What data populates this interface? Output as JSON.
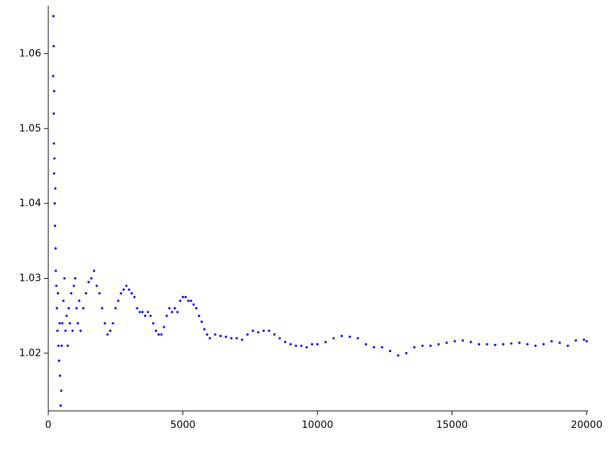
{
  "chart_data": {
    "type": "scatter",
    "color": "#0000ff",
    "xlim": [
      0,
      20050
    ],
    "ylim": [
      1.0123,
      1.0664
    ],
    "xticks": [
      0,
      5000,
      10000,
      15000,
      20000
    ],
    "yticks": [
      1.02,
      1.03,
      1.04,
      1.05,
      1.06
    ],
    "x": [
      180,
      190,
      200,
      205,
      210,
      215,
      220,
      230,
      240,
      250,
      260,
      270,
      280,
      300,
      320,
      340,
      360,
      380,
      400,
      420,
      440,
      460,
      480,
      500,
      520,
      560,
      600,
      640,
      680,
      720,
      760,
      800,
      850,
      900,
      950,
      1000,
      1050,
      1100,
      1150,
      1200,
      1300,
      1400,
      1500,
      1600,
      1700,
      1800,
      1900,
      2000,
      2100,
      2200,
      2300,
      2400,
      2500,
      2600,
      2700,
      2800,
      2900,
      3000,
      3100,
      3200,
      3300,
      3400,
      3500,
      3600,
      3700,
      3800,
      3900,
      4000,
      4100,
      4200,
      4300,
      4400,
      4500,
      4600,
      4700,
      4800,
      4900,
      5000,
      5100,
      5200,
      5300,
      5400,
      5500,
      5600,
      5700,
      5800,
      5900,
      6000,
      6200,
      6400,
      6600,
      6800,
      7000,
      7200,
      7400,
      7600,
      7800,
      8000,
      8200,
      8400,
      8600,
      8800,
      9000,
      9200,
      9400,
      9600,
      9800,
      10000,
      10300,
      10600,
      10900,
      11200,
      11500,
      11800,
      12100,
      12400,
      12700,
      13000,
      13300,
      13600,
      13900,
      14200,
      14500,
      14800,
      15100,
      15400,
      15700,
      16000,
      16300,
      16600,
      16900,
      17200,
      17500,
      17800,
      18100,
      18400,
      18700,
      19000,
      19300,
      19600,
      19900,
      20000
    ],
    "values": [
      1.057,
      1.065,
      1.061,
      1.052,
      1.048,
      1.044,
      1.055,
      1.046,
      1.04,
      1.037,
      1.042,
      1.034,
      1.031,
      1.029,
      1.026,
      1.023,
      1.028,
      1.021,
      1.019,
      1.024,
      1.017,
      1.013,
      1.015,
      1.021,
      1.024,
      1.027,
      1.03,
      1.023,
      1.025,
      1.021,
      1.026,
      1.024,
      1.028,
      1.023,
      1.029,
      1.03,
      1.026,
      1.024,
      1.027,
      1.023,
      1.026,
      1.028,
      1.0295,
      1.03,
      1.031,
      1.029,
      1.028,
      1.026,
      1.024,
      1.0225,
      1.023,
      1.024,
      1.026,
      1.027,
      1.028,
      1.0285,
      1.029,
      1.0285,
      1.028,
      1.0275,
      1.026,
      1.0255,
      1.0255,
      1.025,
      1.0255,
      1.025,
      1.024,
      1.023,
      1.0225,
      1.0225,
      1.0235,
      1.025,
      1.026,
      1.0255,
      1.026,
      1.0255,
      1.027,
      1.0275,
      1.0275,
      1.027,
      1.027,
      1.0265,
      1.026,
      1.025,
      1.0242,
      1.0232,
      1.0225,
      1.022,
      1.0225,
      1.0223,
      1.0222,
      1.022,
      1.022,
      1.0218,
      1.0225,
      1.023,
      1.0228,
      1.023,
      1.023,
      1.0225,
      1.022,
      1.0215,
      1.0212,
      1.021,
      1.021,
      1.0208,
      1.0212,
      1.0212,
      1.0215,
      1.022,
      1.0223,
      1.0222,
      1.022,
      1.0212,
      1.0208,
      1.0208,
      1.0203,
      1.0197,
      1.02,
      1.0208,
      1.021,
      1.021,
      1.0212,
      1.0214,
      1.0216,
      1.0217,
      1.0215,
      1.0212,
      1.0212,
      1.0211,
      1.0212,
      1.0213,
      1.0214,
      1.0212,
      1.021,
      1.0212,
      1.0216,
      1.0214,
      1.021,
      1.0217,
      1.0218,
      1.0216
    ]
  }
}
